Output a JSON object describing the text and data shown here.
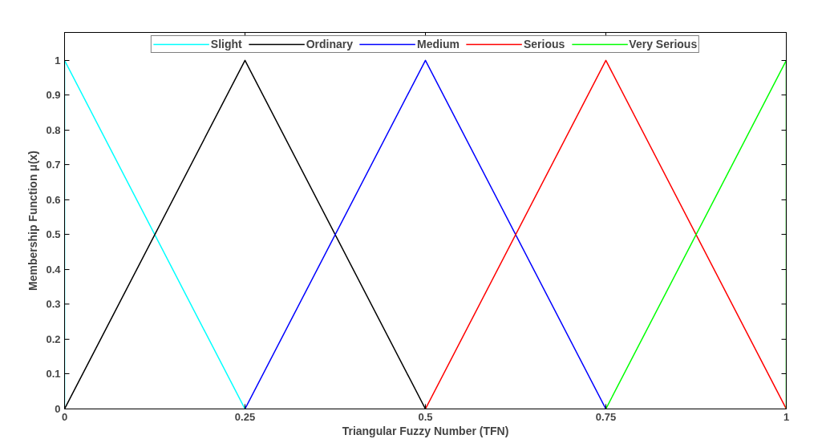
{
  "chart_data": {
    "type": "line",
    "xlabel": "Triangular Fuzzy Number (TFN)",
    "ylabel": "Membership Function μ(x)",
    "xlim": [
      0,
      1
    ],
    "xticks": [
      0,
      0.25,
      0.5,
      0.75,
      1
    ],
    "ylim": [
      0,
      1.08
    ],
    "yticks": [
      0,
      0.1,
      0.2,
      0.3,
      0.4,
      0.5,
      0.6,
      0.7,
      0.8,
      0.9,
      1
    ],
    "grid": false,
    "legend": "top",
    "marker": "none",
    "line_style": "solid",
    "series": [
      {
        "name": "Slight",
        "color": "#00ffff",
        "x": [
          0,
          0,
          0.25
        ],
        "values": [
          0,
          1,
          0
        ]
      },
      {
        "name": "Ordinary",
        "color": "#000000",
        "x": [
          0,
          0.25,
          0.5
        ],
        "values": [
          0,
          1,
          0
        ]
      },
      {
        "name": "Medium",
        "color": "#0000ff",
        "x": [
          0.25,
          0.5,
          0.75
        ],
        "values": [
          0,
          1,
          0
        ]
      },
      {
        "name": "Serious",
        "color": "#ff0000",
        "x": [
          0.5,
          0.75,
          1
        ],
        "values": [
          0,
          1,
          0
        ]
      },
      {
        "name": "Very Serious",
        "color": "#00ff00",
        "x": [
          0.75,
          1,
          1
        ],
        "values": [
          0,
          1,
          0
        ]
      }
    ]
  }
}
